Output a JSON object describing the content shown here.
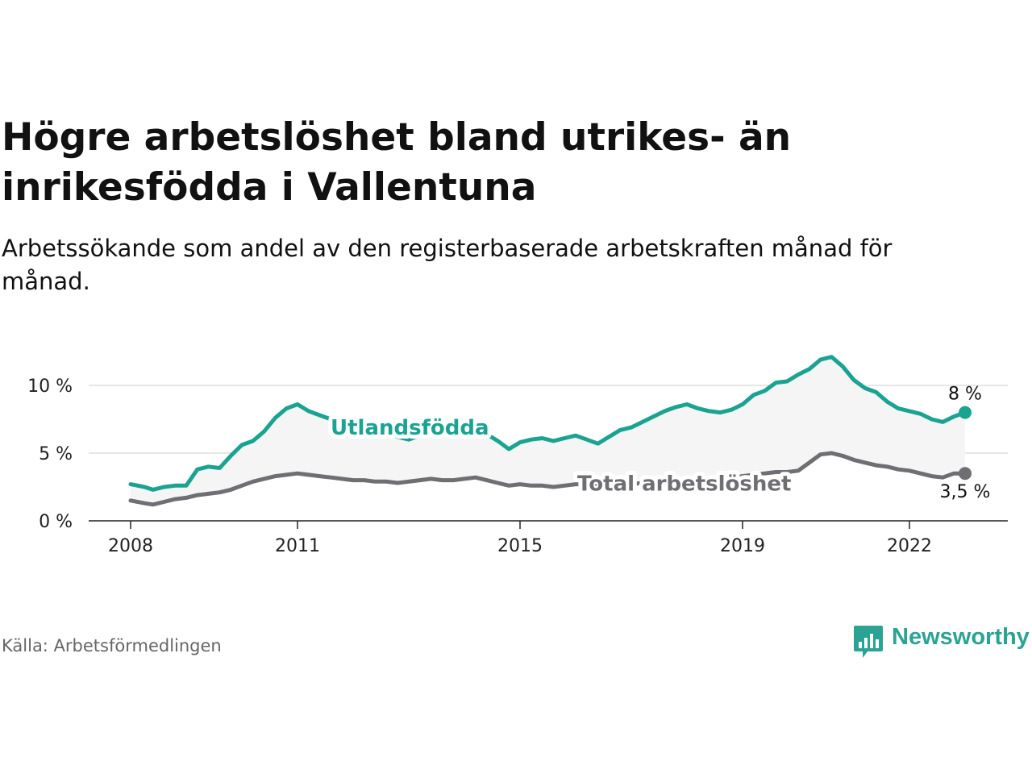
{
  "title": "Högre arbetslöshet bland utrikes- än inrikesfödda i Vallentuna",
  "subtitle": "Arbetssökande som andel av den registerbaserade arbetskraften månad för månad.",
  "source": "Källa: Arbetsförmedlingen",
  "brand": {
    "name": "Newsworthy",
    "color": "#2ba394",
    "icon": "bar-chart-speech-bubble-icon"
  },
  "colors": {
    "foreign": "#1aa391",
    "total": "#6e6e73",
    "fill": "#f5f5f5",
    "grid": "#dddddd"
  },
  "chart_data": {
    "type": "line",
    "title": "Högre arbetslöshet bland utrikes- än inrikesfödda i Vallentuna",
    "xlabel": "",
    "ylabel": "",
    "xlim": [
      2008.0,
      2023.25
    ],
    "ylim": [
      0,
      12
    ],
    "x_ticks": [
      2008,
      2011,
      2015,
      2019,
      2022
    ],
    "x_tick_labels": [
      "2008",
      "2011",
      "2015",
      "2019",
      "2022"
    ],
    "y_ticks": [
      0,
      5,
      10
    ],
    "y_tick_labels": [
      "0 %",
      "5 %",
      "10 %"
    ],
    "grid": true,
    "shaded_band_between_series": true,
    "series": [
      {
        "name": "Utlandsfödda",
        "label": "Utlandsfödda",
        "end_label": "8 %",
        "points": [
          [
            2008.0,
            2.7
          ],
          [
            2008.25,
            2.5
          ],
          [
            2008.4,
            2.3
          ],
          [
            2008.6,
            2.5
          ],
          [
            2008.8,
            2.6
          ],
          [
            2009.0,
            2.6
          ],
          [
            2009.2,
            3.8
          ],
          [
            2009.4,
            4.0
          ],
          [
            2009.6,
            3.9
          ],
          [
            2009.8,
            4.8
          ],
          [
            2010.0,
            5.6
          ],
          [
            2010.2,
            5.9
          ],
          [
            2010.4,
            6.6
          ],
          [
            2010.6,
            7.6
          ],
          [
            2010.8,
            8.3
          ],
          [
            2011.0,
            8.6
          ],
          [
            2011.2,
            8.1
          ],
          [
            2011.4,
            7.8
          ],
          [
            2011.6,
            7.5
          ],
          [
            2011.8,
            7.1
          ],
          [
            2012.0,
            7.4
          ],
          [
            2012.2,
            7.3
          ],
          [
            2012.4,
            7.0
          ],
          [
            2012.6,
            6.6
          ],
          [
            2012.8,
            6.2
          ],
          [
            2013.0,
            6.0
          ],
          [
            2013.2,
            6.3
          ],
          [
            2013.4,
            6.6
          ],
          [
            2013.6,
            6.5
          ],
          [
            2013.8,
            6.4
          ],
          [
            2014.0,
            6.3
          ],
          [
            2014.2,
            6.5
          ],
          [
            2014.4,
            6.4
          ],
          [
            2014.6,
            5.9
          ],
          [
            2014.8,
            5.3
          ],
          [
            2015.0,
            5.8
          ],
          [
            2015.2,
            6.0
          ],
          [
            2015.4,
            6.1
          ],
          [
            2015.6,
            5.9
          ],
          [
            2015.8,
            6.1
          ],
          [
            2016.0,
            6.3
          ],
          [
            2016.2,
            6.0
          ],
          [
            2016.4,
            5.7
          ],
          [
            2016.6,
            6.2
          ],
          [
            2016.8,
            6.7
          ],
          [
            2017.0,
            6.9
          ],
          [
            2017.2,
            7.3
          ],
          [
            2017.4,
            7.7
          ],
          [
            2017.6,
            8.1
          ],
          [
            2017.8,
            8.4
          ],
          [
            2018.0,
            8.6
          ],
          [
            2018.2,
            8.3
          ],
          [
            2018.4,
            8.1
          ],
          [
            2018.6,
            8.0
          ],
          [
            2018.8,
            8.2
          ],
          [
            2019.0,
            8.6
          ],
          [
            2019.2,
            9.3
          ],
          [
            2019.4,
            9.6
          ],
          [
            2019.6,
            10.2
          ],
          [
            2019.8,
            10.3
          ],
          [
            2020.0,
            10.8
          ],
          [
            2020.2,
            11.2
          ],
          [
            2020.4,
            11.9
          ],
          [
            2020.6,
            12.1
          ],
          [
            2020.8,
            11.4
          ],
          [
            2021.0,
            10.4
          ],
          [
            2021.2,
            9.8
          ],
          [
            2021.4,
            9.5
          ],
          [
            2021.6,
            8.8
          ],
          [
            2021.8,
            8.3
          ],
          [
            2022.0,
            8.1
          ],
          [
            2022.2,
            7.9
          ],
          [
            2022.4,
            7.5
          ],
          [
            2022.6,
            7.3
          ],
          [
            2022.8,
            7.7
          ],
          [
            2023.0,
            8.0
          ]
        ]
      },
      {
        "name": "Total arbetslöshet",
        "label": "Total arbetslöshet",
        "end_label": "3,5 %",
        "points": [
          [
            2008.0,
            1.5
          ],
          [
            2008.25,
            1.3
          ],
          [
            2008.4,
            1.2
          ],
          [
            2008.6,
            1.4
          ],
          [
            2008.8,
            1.6
          ],
          [
            2009.0,
            1.7
          ],
          [
            2009.2,
            1.9
          ],
          [
            2009.4,
            2.0
          ],
          [
            2009.6,
            2.1
          ],
          [
            2009.8,
            2.3
          ],
          [
            2010.0,
            2.6
          ],
          [
            2010.2,
            2.9
          ],
          [
            2010.4,
            3.1
          ],
          [
            2010.6,
            3.3
          ],
          [
            2010.8,
            3.4
          ],
          [
            2011.0,
            3.5
          ],
          [
            2011.2,
            3.4
          ],
          [
            2011.4,
            3.3
          ],
          [
            2011.6,
            3.2
          ],
          [
            2011.8,
            3.1
          ],
          [
            2012.0,
            3.0
          ],
          [
            2012.2,
            3.0
          ],
          [
            2012.4,
            2.9
          ],
          [
            2012.6,
            2.9
          ],
          [
            2012.8,
            2.8
          ],
          [
            2013.0,
            2.9
          ],
          [
            2013.2,
            3.0
          ],
          [
            2013.4,
            3.1
          ],
          [
            2013.6,
            3.0
          ],
          [
            2013.8,
            3.0
          ],
          [
            2014.0,
            3.1
          ],
          [
            2014.2,
            3.2
          ],
          [
            2014.4,
            3.0
          ],
          [
            2014.6,
            2.8
          ],
          [
            2014.8,
            2.6
          ],
          [
            2015.0,
            2.7
          ],
          [
            2015.2,
            2.6
          ],
          [
            2015.4,
            2.6
          ],
          [
            2015.6,
            2.5
          ],
          [
            2015.8,
            2.6
          ],
          [
            2016.0,
            2.7
          ],
          [
            2016.2,
            2.7
          ],
          [
            2016.4,
            2.6
          ],
          [
            2016.6,
            2.6
          ],
          [
            2016.8,
            2.7
          ],
          [
            2017.0,
            2.7
          ],
          [
            2017.2,
            2.8
          ],
          [
            2017.4,
            2.8
          ],
          [
            2017.6,
            2.9
          ],
          [
            2017.8,
            3.0
          ],
          [
            2018.0,
            3.0
          ],
          [
            2018.2,
            3.0
          ],
          [
            2018.4,
            3.1
          ],
          [
            2018.6,
            3.1
          ],
          [
            2018.8,
            3.2
          ],
          [
            2019.0,
            3.3
          ],
          [
            2019.2,
            3.4
          ],
          [
            2019.4,
            3.5
          ],
          [
            2019.6,
            3.6
          ],
          [
            2019.8,
            3.6
          ],
          [
            2020.0,
            3.7
          ],
          [
            2020.2,
            4.3
          ],
          [
            2020.4,
            4.9
          ],
          [
            2020.6,
            5.0
          ],
          [
            2020.8,
            4.8
          ],
          [
            2021.0,
            4.5
          ],
          [
            2021.2,
            4.3
          ],
          [
            2021.4,
            4.1
          ],
          [
            2021.6,
            4.0
          ],
          [
            2021.8,
            3.8
          ],
          [
            2022.0,
            3.7
          ],
          [
            2022.2,
            3.5
          ],
          [
            2022.4,
            3.3
          ],
          [
            2022.6,
            3.2
          ],
          [
            2022.8,
            3.5
          ],
          [
            2023.0,
            3.5
          ]
        ]
      }
    ]
  }
}
